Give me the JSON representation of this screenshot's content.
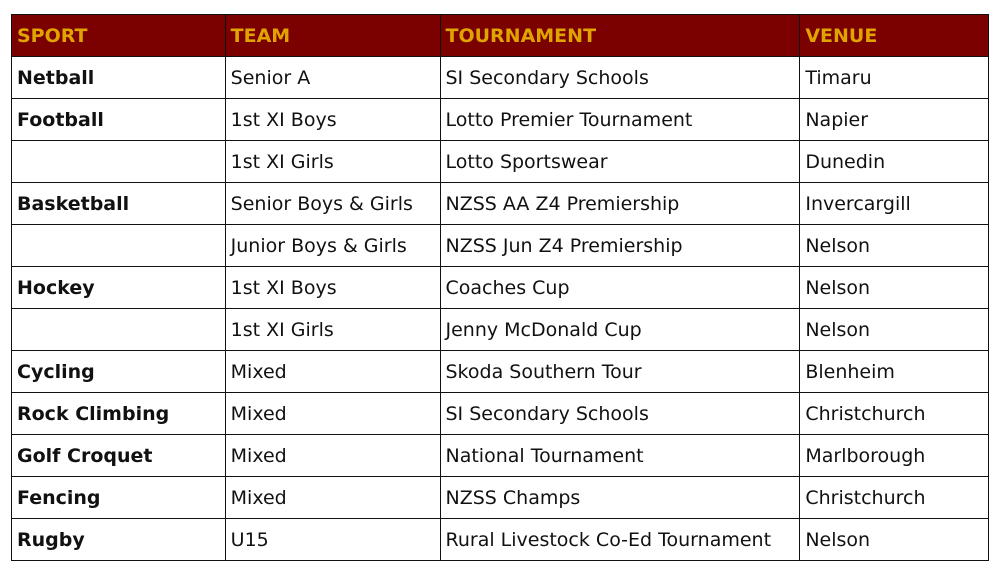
{
  "colors": {
    "header_bg": "#7b0000",
    "header_text": "#e0a400"
  },
  "headers": [
    "SPORT",
    "TEAM",
    "TOURNAMENT",
    "VENUE"
  ],
  "rows": [
    [
      "Netball",
      "Senior A",
      "SI Secondary Schools",
      "Timaru"
    ],
    [
      "Football",
      "1st XI Boys",
      "Lotto Premier Tournament",
      "Napier"
    ],
    [
      "",
      "1st XI Girls",
      "Lotto Sportswear",
      "Dunedin"
    ],
    [
      "Basketball",
      "Senior Boys & Girls",
      "NZSS AA Z4 Premiership",
      "Invercargill"
    ],
    [
      "",
      "Junior Boys & Girls",
      "NZSS Jun Z4 Premiership",
      "Nelson"
    ],
    [
      "Hockey",
      "1st XI Boys",
      "Coaches Cup",
      "Nelson"
    ],
    [
      "",
      "1st XI Girls",
      "Jenny McDonald Cup",
      "Nelson"
    ],
    [
      "Cycling",
      "Mixed",
      "Skoda Southern Tour",
      "Blenheim"
    ],
    [
      "Rock Climbing",
      "Mixed",
      "SI Secondary Schools",
      "Christchurch"
    ],
    [
      "Golf Croquet",
      "Mixed",
      "National Tournament",
      "Marlborough"
    ],
    [
      "Fencing",
      "Mixed",
      "NZSS Champs",
      "Christchurch"
    ],
    [
      "Rugby",
      "U15",
      "Rural Livestock Co-Ed Tournament",
      "Nelson"
    ]
  ]
}
